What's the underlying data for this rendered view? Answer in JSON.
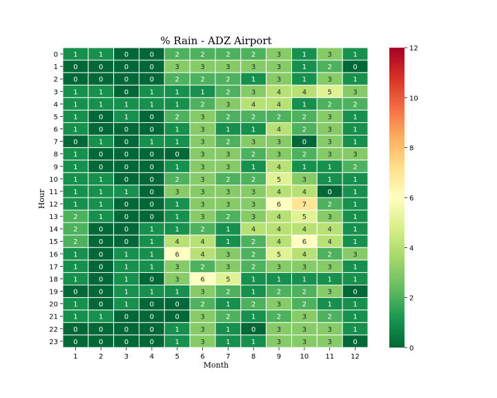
{
  "chart_data": {
    "type": "heatmap",
    "title": "% Rain - ADZ Airport",
    "xlabel": "Month",
    "ylabel": "Hour",
    "x_categories": [
      "1",
      "2",
      "3",
      "4",
      "5",
      "6",
      "7",
      "8",
      "9",
      "10",
      "11",
      "12"
    ],
    "y_categories": [
      "0",
      "1",
      "2",
      "3",
      "4",
      "5",
      "6",
      "7",
      "8",
      "9",
      "10",
      "11",
      "12",
      "13",
      "14",
      "15",
      "16",
      "17",
      "18",
      "19",
      "20",
      "21",
      "22",
      "23"
    ],
    "values": [
      [
        1,
        1,
        0,
        0,
        2,
        2,
        2,
        2,
        3,
        1,
        3,
        1
      ],
      [
        0,
        0,
        0,
        0,
        3,
        3,
        3,
        3,
        3,
        1,
        2,
        0
      ],
      [
        0,
        0,
        0,
        0,
        2,
        2,
        2,
        1,
        3,
        1,
        3,
        1
      ],
      [
        1,
        1,
        0,
        1,
        1,
        1,
        2,
        3,
        4,
        4,
        5,
        3
      ],
      [
        1,
        1,
        1,
        1,
        1,
        2,
        3,
        4,
        4,
        1,
        2,
        2
      ],
      [
        1,
        0,
        1,
        0,
        2,
        3,
        2,
        2,
        2,
        2,
        3,
        1
      ],
      [
        1,
        0,
        0,
        0,
        1,
        3,
        1,
        1,
        4,
        2,
        3,
        1
      ],
      [
        0,
        1,
        0,
        1,
        1,
        3,
        2,
        3,
        3,
        0,
        3,
        1
      ],
      [
        1,
        0,
        0,
        0,
        0,
        3,
        3,
        2,
        3,
        2,
        3,
        3
      ],
      [
        1,
        0,
        0,
        0,
        1,
        3,
        3,
        1,
        4,
        1,
        1,
        2
      ],
      [
        1,
        1,
        0,
        0,
        2,
        3,
        2,
        2,
        5,
        3,
        1,
        1
      ],
      [
        1,
        1,
        1,
        0,
        3,
        3,
        3,
        3,
        4,
        4,
        0,
        1
      ],
      [
        1,
        1,
        0,
        0,
        1,
        3,
        3,
        3,
        6,
        7,
        2,
        1
      ],
      [
        2,
        1,
        0,
        0,
        1,
        3,
        2,
        3,
        4,
        5,
        3,
        1
      ],
      [
        2,
        0,
        0,
        1,
        1,
        2,
        1,
        4,
        4,
        4,
        4,
        1
      ],
      [
        2,
        0,
        0,
        1,
        4,
        4,
        1,
        2,
        4,
        6,
        4,
        1
      ],
      [
        1,
        0,
        1,
        1,
        6,
        4,
        3,
        2,
        5,
        4,
        2,
        3
      ],
      [
        1,
        0,
        1,
        1,
        3,
        2,
        3,
        2,
        3,
        3,
        3,
        1
      ],
      [
        1,
        0,
        1,
        0,
        3,
        6,
        5,
        1,
        1,
        1,
        1,
        1
      ],
      [
        0,
        0,
        1,
        1,
        1,
        3,
        2,
        1,
        2,
        2,
        3,
        0
      ],
      [
        1,
        0,
        1,
        0,
        0,
        2,
        1,
        2,
        3,
        2,
        1,
        1
      ],
      [
        1,
        1,
        0,
        0,
        0,
        3,
        2,
        1,
        2,
        3,
        2,
        1
      ],
      [
        0,
        0,
        0,
        0,
        1,
        3,
        1,
        0,
        3,
        3,
        3,
        1
      ],
      [
        0,
        0,
        0,
        0,
        1,
        3,
        1,
        1,
        3,
        3,
        3,
        0
      ]
    ],
    "colorscale": "RdYlGn_r",
    "vmin": 0,
    "vmax": 12,
    "colorbar_ticks": [
      "0",
      "2",
      "4",
      "6",
      "8",
      "10",
      "12"
    ]
  }
}
